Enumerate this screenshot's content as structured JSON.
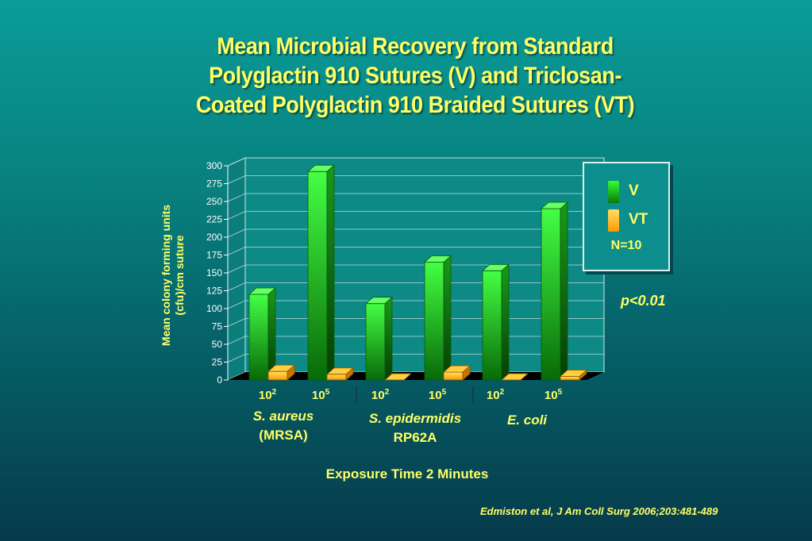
{
  "title_lines": [
    "Mean Microbial Recovery from Standard",
    "Polyglactin 910 Sutures (V) and Triclosan-",
    "Coated Polyglactin 910 Braided Sutures (VT)"
  ],
  "colors": {
    "V": "#22dd22",
    "VT": "#ffb300",
    "text": "#ffff66"
  },
  "chart_data": {
    "type": "bar",
    "ylabel_lines": [
      "Mean colony forming units",
      "(cfu)/cm suture"
    ],
    "xlabel": "Exposure Time 2 Minutes",
    "ylim": [
      0,
      300
    ],
    "yticks": [
      "0",
      "25",
      "50",
      "75",
      "100",
      "125",
      "150",
      "175",
      "200",
      "225",
      "250",
      "275",
      "300"
    ],
    "tick_labels": [
      {
        "base": "10",
        "exp": "2"
      },
      {
        "base": "10",
        "exp": "5"
      },
      {
        "base": "10",
        "exp": "2"
      },
      {
        "base": "10",
        "exp": "5"
      },
      {
        "base": "10",
        "exp": "2"
      },
      {
        "base": "10",
        "exp": "5"
      }
    ],
    "groups": [
      {
        "name": "S. aureus",
        "sub": "(MRSA)"
      },
      {
        "name": "S. epidermidis",
        "sub": "RP62A"
      },
      {
        "name": "E. coli",
        "sub": ""
      }
    ],
    "series": [
      {
        "name": "V",
        "values": [
          120,
          292,
          107,
          165,
          153,
          240
        ]
      },
      {
        "name": "VT",
        "values": [
          12,
          8,
          0,
          11,
          0,
          5
        ]
      }
    ],
    "grid": true,
    "legend_position": "top-right"
  },
  "legend": {
    "items": [
      {
        "label": "V"
      },
      {
        "label": "VT"
      }
    ],
    "note": "N=10"
  },
  "pvalue": "p<0.01",
  "citation": "Edmiston et al,  J Am Coll Surg 2006;203:481-489"
}
